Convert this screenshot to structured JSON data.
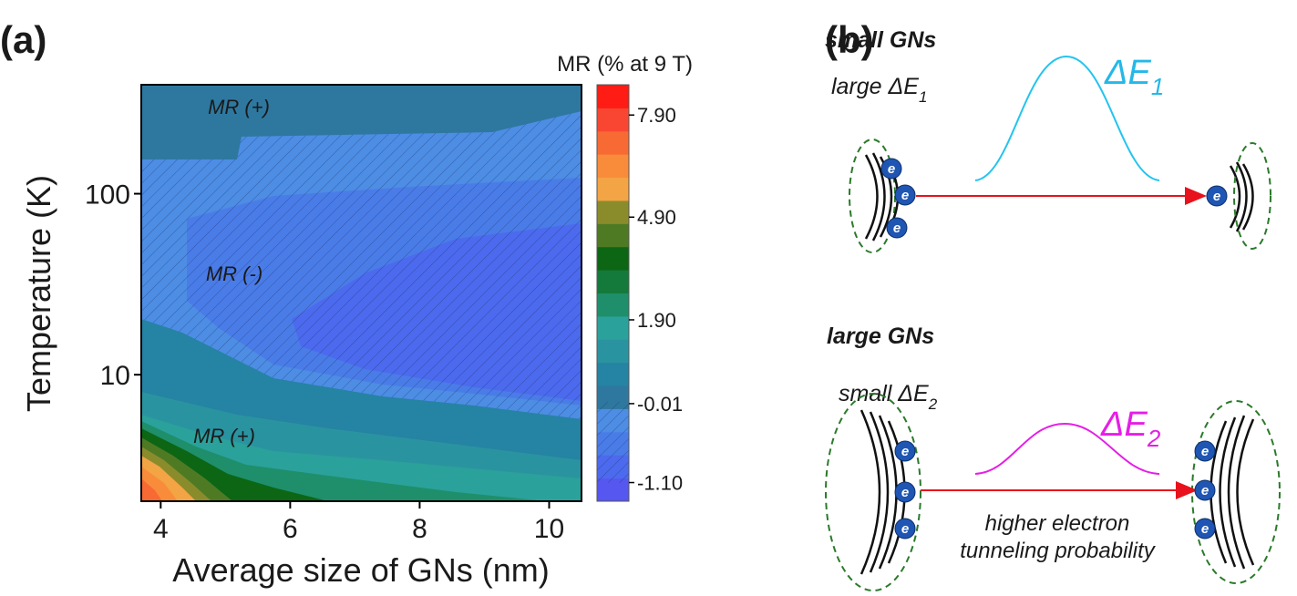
{
  "panel_labels": [
    "(a)",
    "(b)"
  ],
  "chart_data": {
    "type": "contour",
    "xlabel": "Average size of GNs (nm)",
    "ylabel": "Temperature (K)",
    "xlim": [
      3.7,
      10.5
    ],
    "xticks": [
      4,
      6,
      8,
      10
    ],
    "ylim": [
      2,
      400
    ],
    "ylog": true,
    "yticks": [
      10,
      100
    ],
    "annotations": [
      "MR (+)",
      "MR (-)",
      "MR (+)"
    ],
    "colorbar": {
      "label": "MR (% at 9 T)",
      "levels": [
        -1.35,
        -1.04,
        -0.73,
        -0.42,
        -0.11,
        0.35,
        0.89,
        1.43,
        1.99,
        2.67,
        3.35,
        4.03,
        4.71,
        5.39,
        6.07,
        6.75,
        7.43,
        8.11,
        8.79
      ],
      "colors": [
        "#5656f0",
        "#4c6aee",
        "#4a7ce8",
        "#4d8de4",
        "#2e78a0",
        "#2583a3",
        "#2a93a0",
        "#2aa19a",
        "#1e8f6a",
        "#147a3c",
        "#0c6614",
        "#4f7a24",
        "#8a8c2c",
        "#f3a444",
        "#f98c3a",
        "#f86a34",
        "#f84632",
        "#ff1c14"
      ],
      "ticks": [
        {
          "value": -1.1,
          "label": "-1.10"
        },
        {
          "value": -0.01,
          "label": "-0.01"
        },
        {
          "value": 1.9,
          "label": "1.90"
        },
        {
          "value": 4.9,
          "label": "4.90"
        },
        {
          "value": 7.9,
          "label": "7.90"
        }
      ]
    }
  },
  "diagram": {
    "top": {
      "title": "small GNs",
      "gap": {
        "text": "large ΔE",
        "sub": "1"
      },
      "peak": {
        "text": "ΔE",
        "sub": "1"
      }
    },
    "bottom": {
      "title": "large GNs",
      "gap": {
        "text": "small ΔE",
        "sub": "2"
      },
      "peak": {
        "text": "ΔE",
        "sub": "2"
      },
      "note": [
        "higher electron",
        "tunneling probability"
      ]
    },
    "electron": "e"
  }
}
